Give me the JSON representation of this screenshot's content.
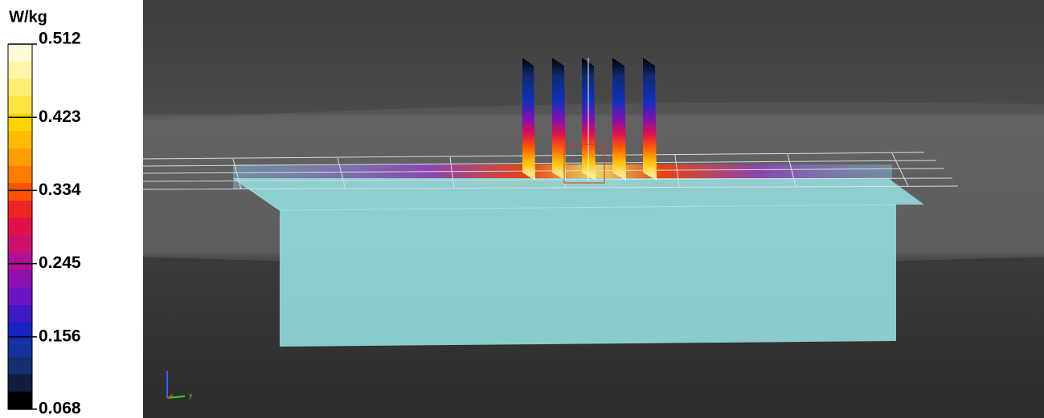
{
  "colorbar": {
    "unit": "W/kg",
    "ticks": [
      0.512,
      0.423,
      0.334,
      0.245,
      0.156,
      0.068
    ]
  },
  "axes_triad": {
    "label": "y"
  }
}
